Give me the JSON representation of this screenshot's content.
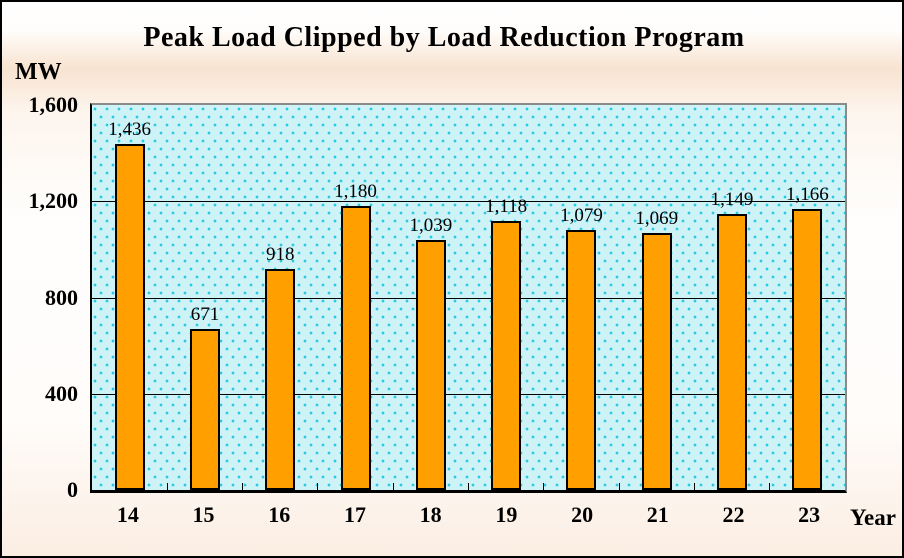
{
  "chart_data": {
    "type": "bar",
    "title": "Peak Load Clipped by Load Reduction Program",
    "xlabel": "Year",
    "ylabel": "MW",
    "categories": [
      "14",
      "15",
      "16",
      "17",
      "18",
      "19",
      "20",
      "21",
      "22",
      "23"
    ],
    "values": [
      1436,
      671,
      918,
      1180,
      1039,
      1118,
      1079,
      1069,
      1149,
      1166
    ],
    "value_labels": [
      "1,436",
      "671",
      "918",
      "1,180",
      "1,039",
      "1,118",
      "1,079",
      "1,069",
      "1,149",
      "1,166"
    ],
    "ylim": [
      0,
      1600
    ],
    "ytick_values": [
      1600,
      1200,
      800,
      400,
      0
    ],
    "ytick_labels": [
      "1,600",
      "1,200",
      "800",
      "400",
      "0"
    ],
    "gridline_values": [
      1200,
      800,
      400
    ],
    "grid": "horizontal",
    "legend": "none",
    "colors": {
      "bar_fill": "#FFA000",
      "bar_border": "#000000",
      "plot_background": "#CDF3F7",
      "plot_dots": "#2BC8E6",
      "gridline": "#000000",
      "text": "#000000"
    }
  }
}
